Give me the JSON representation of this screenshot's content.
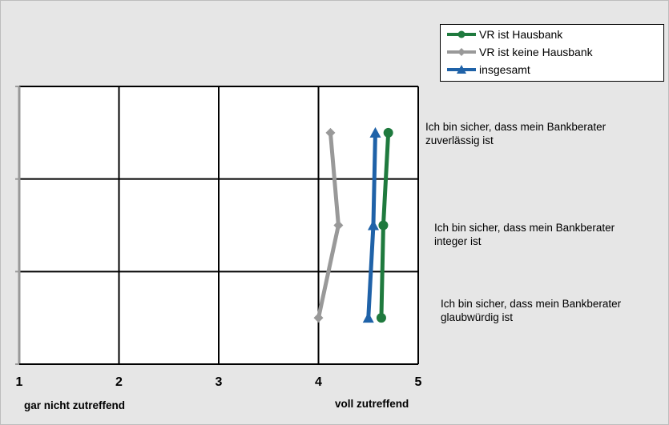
{
  "chart_data": {
    "type": "line",
    "orientation": "horizontal-values",
    "xlim": [
      1,
      5
    ],
    "x_ticks": [
      "1",
      "2",
      "3",
      "4",
      "5"
    ],
    "x_label_left": "gar nicht zutreffend",
    "x_label_right": "voll zutreffend",
    "grid": true,
    "legend_position": "top-right",
    "items": [
      "Ich bin sicher, dass mein Bankberater zuverlässig ist",
      "Ich bin sicher, dass mein Bankberater integer ist",
      "Ich bin sicher, dass mein Bankberater glaubwürdig ist"
    ],
    "series": [
      {
        "name": "VR ist Hausbank",
        "color": "#1f7a3e",
        "marker": "circle",
        "values": [
          4.7,
          4.65,
          4.63
        ]
      },
      {
        "name": "VR ist keine Hausbank",
        "color": "#999999",
        "marker": "diamond",
        "values": [
          4.12,
          4.2,
          4.0
        ]
      },
      {
        "name": "insgesamt",
        "color": "#1f62a8",
        "marker": "triangle",
        "values": [
          4.57,
          4.55,
          4.5
        ]
      }
    ]
  },
  "annotations": [
    [
      "Ich bin sicher, dass mein Bankberater",
      "zuverlässig ist"
    ],
    [
      "Ich bin sicher, dass mein Bankberater",
      "integer ist"
    ],
    [
      "Ich bin sicher, dass mein Bankberater",
      "glaubwürdig ist"
    ]
  ]
}
